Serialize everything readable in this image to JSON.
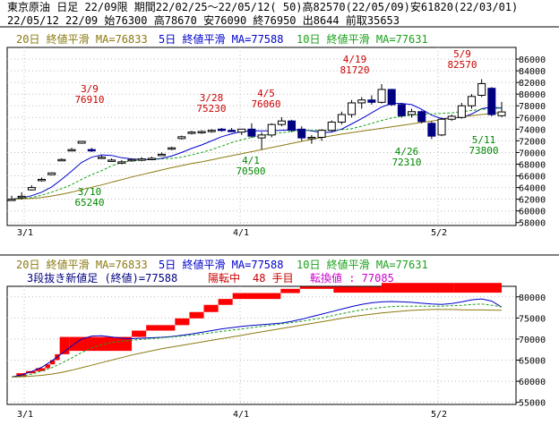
{
  "header": {
    "line1": "東京原油 日足 22/09限 期間22/02/25〜22/05/12( 50)高82570(22/05/09)安61820(22/03/01)",
    "line2": "22/05/12 22/09 始76300 高78670 安76090 終76950 出8644 前取35653"
  },
  "legend": {
    "ma20": "20日 終値平滑 MA=76833",
    "ma5": "5日 終値平滑 MA=77588",
    "ma10": "10日 終値平滑 MA=77631"
  },
  "lower_info": {
    "method": "3段抜き新値足 (終値)=77588",
    "state": "陽転中",
    "count": "48 手目",
    "reversal": "転換値 : 77085"
  },
  "colors": {
    "ma20": "#8b7a10",
    "ma5": "#0000cc",
    "ma10": "#1aa01a",
    "up": "#ff0000",
    "down": "#000080",
    "annot_high": "#cc0000",
    "annot_low": "#008800"
  },
  "chart_data": [
    {
      "type": "candlestick",
      "x_ticks": [
        "3/1",
        "4/1",
        "5/2"
      ],
      "y_ticks": [
        58000,
        60000,
        62000,
        64000,
        66000,
        68000,
        70000,
        72000,
        74000,
        76000,
        78000,
        80000,
        82000,
        84000,
        86000
      ],
      "ylim": [
        57500,
        88000
      ],
      "ohlc": [
        [
          61900,
          62600,
          61820,
          62000
        ],
        [
          62300,
          63200,
          61950,
          62500
        ],
        [
          63600,
          64400,
          63500,
          64000
        ],
        [
          65400,
          65700,
          65000,
          65400
        ],
        [
          66200,
          66600,
          66100,
          66500
        ],
        [
          68700,
          69000,
          68600,
          68800
        ],
        [
          70300,
          70800,
          70200,
          70500
        ],
        [
          71600,
          72000,
          71500,
          71900
        ],
        [
          70500,
          70800,
          70100,
          70400
        ],
        [
          69200,
          69500,
          68900,
          69200
        ],
        [
          68600,
          69000,
          68400,
          68700
        ],
        [
          68300,
          68700,
          68000,
          68400
        ],
        [
          68600,
          69000,
          68400,
          68800
        ],
        [
          68700,
          69200,
          68500,
          68900
        ],
        [
          68900,
          69300,
          68700,
          69000
        ],
        [
          69600,
          70000,
          69400,
          69700
        ],
        [
          70600,
          71000,
          70400,
          70800
        ],
        [
          72400,
          72900,
          72200,
          72700
        ],
        [
          73300,
          73700,
          73100,
          73500
        ],
        [
          73400,
          73800,
          73200,
          73600
        ],
        [
          73600,
          74000,
          73400,
          73800
        ],
        [
          74000,
          74200,
          73600,
          73800
        ],
        [
          73800,
          74200,
          73500,
          73700
        ],
        [
          73500,
          74000,
          73000,
          74000
        ],
        [
          74000,
          75000,
          72500,
          72800
        ],
        [
          72500,
          73500,
          70500,
          73000
        ],
        [
          73000,
          75000,
          72600,
          74800
        ],
        [
          74800,
          76060,
          74500,
          75400
        ],
        [
          75400,
          75600,
          73500,
          73800
        ],
        [
          74000,
          74500,
          72000,
          72500
        ],
        [
          72500,
          73000,
          71500,
          72600
        ],
        [
          72600,
          74000,
          72000,
          73800
        ],
        [
          73800,
          75500,
          73500,
          75200
        ],
        [
          75200,
          77000,
          74800,
          76500
        ],
        [
          76500,
          79000,
          76000,
          78500
        ],
        [
          78500,
          79500,
          77500,
          79000
        ],
        [
          79000,
          79800,
          78200,
          78600
        ],
        [
          78600,
          81720,
          78400,
          80800
        ],
        [
          80800,
          80900,
          78000,
          78200
        ],
        [
          78200,
          78500,
          76000,
          76300
        ],
        [
          76500,
          77500,
          76000,
          77000
        ],
        [
          77000,
          77200,
          75000,
          75300
        ],
        [
          75000,
          75300,
          72310,
          72800
        ],
        [
          73000,
          76000,
          72800,
          75700
        ],
        [
          75700,
          76500,
          75400,
          76200
        ],
        [
          76000,
          78500,
          75800,
          78000
        ],
        [
          78000,
          80000,
          77500,
          79600
        ],
        [
          79800,
          82570,
          79500,
          81800
        ],
        [
          81000,
          81200,
          76200,
          76500
        ],
        [
          76300,
          78670,
          76090,
          76950
        ]
      ],
      "ma_series": [
        {
          "name": "5日",
          "values": [
            62000,
            62200,
            62600,
            63200,
            64100,
            65400,
            66800,
            68300,
            69200,
            69600,
            69500,
            69100,
            68900,
            68800,
            68800,
            69000,
            69400,
            70000,
            70700,
            71300,
            72000,
            72700,
            73200,
            73600,
            73700,
            73700,
            73700,
            73800,
            73900,
            73900,
            73700,
            73400,
            73500,
            74000,
            74900,
            75800,
            76800,
            77800,
            78400,
            78400,
            78200,
            77400,
            76400,
            75800,
            75900,
            76000,
            76600,
            77500,
            77800,
            77588
          ]
        },
        {
          "name": "10日",
          "values": [
            62000,
            62100,
            62300,
            62700,
            63200,
            63800,
            64500,
            65400,
            66200,
            66900,
            67700,
            68300,
            68600,
            68700,
            68800,
            68900,
            69000,
            69200,
            69600,
            70000,
            70500,
            71100,
            71700,
            72200,
            72600,
            72900,
            73200,
            73400,
            73600,
            73800,
            73800,
            73800,
            73800,
            73900,
            74100,
            74500,
            75000,
            75500,
            75900,
            76200,
            76400,
            76500,
            76600,
            76700,
            76800,
            77000,
            77200,
            77400,
            77500,
            77631
          ]
        },
        {
          "name": "20日",
          "values": [
            62000,
            62050,
            62150,
            62300,
            62550,
            62850,
            63200,
            63650,
            64050,
            64450,
            64900,
            65350,
            65800,
            66200,
            66600,
            67000,
            67400,
            67750,
            68100,
            68400,
            68750,
            69100,
            69450,
            69800,
            70150,
            70500,
            70850,
            71200,
            71550,
            71900,
            72250,
            72550,
            72850,
            73150,
            73400,
            73650,
            73900,
            74150,
            74400,
            74650,
            74900,
            75150,
            75400,
            75650,
            75900,
            76100,
            76300,
            76500,
            76700,
            76833
          ]
        }
      ],
      "annotations": [
        {
          "date": "3/9",
          "value": 76910,
          "kind": "high"
        },
        {
          "date": "3/10",
          "value": 65240,
          "kind": "low"
        },
        {
          "date": "3/28",
          "value": 75230,
          "kind": "high"
        },
        {
          "date": "4/1",
          "value": 70500,
          "kind": "low"
        },
        {
          "date": "4/5",
          "value": 76060,
          "kind": "high"
        },
        {
          "date": "4/19",
          "value": 81720,
          "kind": "high"
        },
        {
          "date": "4/26",
          "value": 72310,
          "kind": "low"
        },
        {
          "date": "5/9",
          "value": 82570,
          "kind": "high"
        },
        {
          "date": "5/11",
          "value": 73800,
          "kind": "low"
        }
      ]
    },
    {
      "type": "new_price_bars",
      "x_ticks": [
        "3/1",
        "4/1",
        "5/2"
      ],
      "y_ticks": [
        55000,
        60000,
        65000,
        70000,
        75000,
        80000
      ],
      "ylim": [
        54500,
        82500
      ],
      "blocks": [
        [
          1,
          3,
          61000,
          61900
        ],
        [
          3,
          5,
          61900,
          62400
        ],
        [
          5,
          7,
          62400,
          63100
        ],
        [
          7,
          8,
          63100,
          64000
        ],
        [
          8,
          9,
          64000,
          65000
        ],
        [
          9,
          10,
          65000,
          66400
        ],
        [
          10,
          12,
          66400,
          70500
        ],
        [
          12,
          25,
          70500,
          67200
        ],
        [
          25,
          28,
          70500,
          72000
        ],
        [
          28,
          34,
          72000,
          73300
        ],
        [
          34,
          37,
          73300,
          74900
        ],
        [
          37,
          40,
          74900,
          76400
        ],
        [
          40,
          43,
          76400,
          78100
        ],
        [
          43,
          46,
          78100,
          79500
        ],
        [
          46,
          56,
          79500,
          80900
        ],
        [
          56,
          60,
          80900,
          81900
        ],
        [
          60,
          67,
          81900,
          82400
        ],
        [
          67,
          77,
          82400,
          81000
        ],
        [
          77,
          92,
          81000,
          83300
        ],
        [
          92,
          102,
          81000,
          83300
        ]
      ],
      "ma_series": [
        {
          "name": "5日",
          "values": [
            61000,
            61500,
            62300,
            63300,
            64800,
            66500,
            68400,
            70000,
            70700,
            70800,
            70500,
            70200,
            70100,
            70200,
            70300,
            70400,
            70600,
            70900,
            71200,
            71600,
            72000,
            72400,
            72700,
            73000,
            73200,
            73400,
            73600,
            73800,
            74200,
            74700,
            75300,
            75900,
            76500,
            77100,
            77700,
            78200,
            78600,
            78800,
            78900,
            78800,
            78700,
            78500,
            78300,
            78200,
            78400,
            78800,
            79300,
            79500,
            79000,
            77588
          ]
        },
        {
          "name": "10日",
          "values": [
            61000,
            61200,
            61700,
            62400,
            63200,
            64300,
            65500,
            66800,
            67900,
            68700,
            69200,
            69500,
            69700,
            69900,
            70100,
            70300,
            70500,
            70700,
            70900,
            71200,
            71500,
            71800,
            72100,
            72400,
            72700,
            73000,
            73300,
            73600,
            73900,
            74200,
            74600,
            75000,
            75500,
            76000,
            76500,
            76900,
            77200,
            77500,
            77700,
            77800,
            77800,
            77800,
            77800,
            77800,
            77900,
            78000,
            78200,
            78300,
            78000,
            77631
          ]
        },
        {
          "name": "20日",
          "values": [
            61000,
            61050,
            61200,
            61400,
            61700,
            62100,
            62600,
            63200,
            63800,
            64400,
            65000,
            65600,
            66200,
            66700,
            67200,
            67700,
            68100,
            68500,
            68900,
            69300,
            69700,
            70100,
            70500,
            70900,
            71300,
            71700,
            72100,
            72500,
            72900,
            73300,
            73700,
            74100,
            74500,
            74900,
            75300,
            75600,
            75900,
            76200,
            76400,
            76600,
            76800,
            76900,
            77000,
            77000,
            77000,
            76950,
            76900,
            76900,
            76850,
            76833
          ]
        }
      ]
    }
  ]
}
